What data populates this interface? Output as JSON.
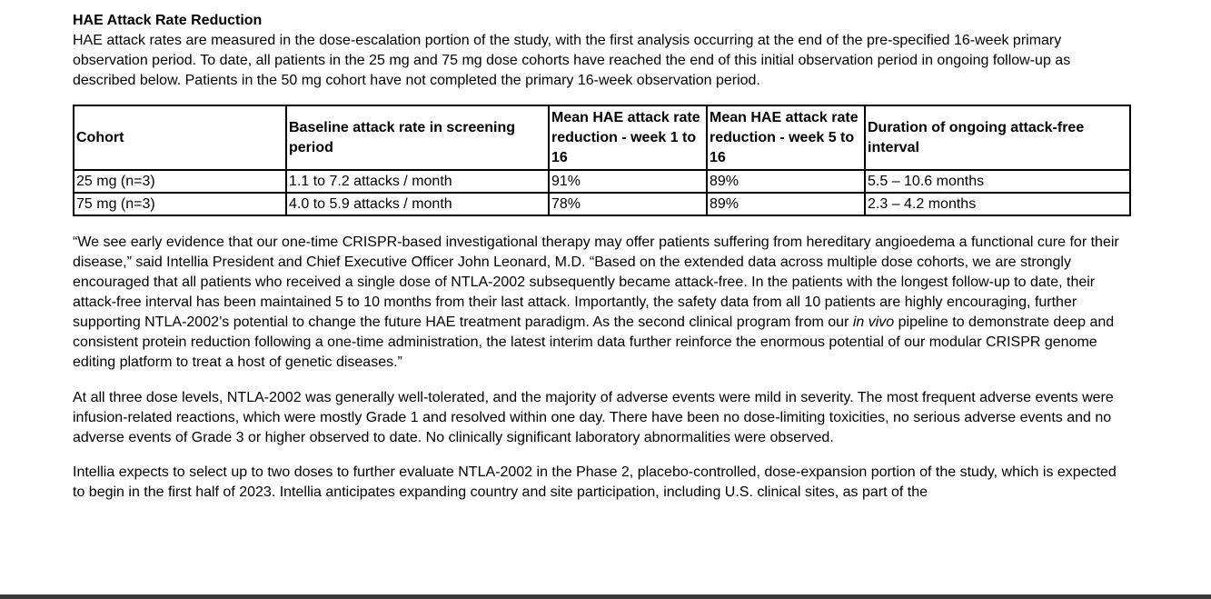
{
  "section_title": "HAE Attack Rate Reduction",
  "intro": "HAE attack rates are measured in the dose-escalation portion of the study, with the first analysis occurring at the end of the pre-specified 16-week primary observation period. To date, all patients in the 25 mg and 75 mg dose cohorts have reached the end of this initial observation period in ongoing follow-up as described below. Patients in the 50 mg cohort have not completed the primary 16-week observation period.",
  "table": {
    "headers": [
      "Cohort",
      "Baseline attack rate in screening period",
      "Mean HAE attack rate reduction - week 1 to 16",
      "Mean HAE attack rate reduction - week 5 to 16",
      "Duration of ongoing attack-free interval"
    ],
    "rows": [
      [
        "25 mg (n=3)",
        "1.1 to 7.2 attacks / month",
        "91%",
        "89%",
        "5.5 – 10.6 months"
      ],
      [
        "75 mg (n=3)",
        "4.0 to 5.9 attacks / month",
        "78%",
        "89%",
        "2.3 – 4.2 months"
      ]
    ]
  },
  "quote": {
    "part1": "“We see early evidence that our one-time CRISPR-based investigational therapy may offer patients suffering from hereditary angioedema a functional cure for their disease,” said Intellia President and Chief Executive Officer  John Leonard, M.D. “Based on the extended data across multiple dose cohorts, we are strongly encouraged that all patients who received a single dose of NTLA-2002 subsequently became attack-free. In the patients with the longest follow-up to date, their attack-free interval has been maintained 5 to 10 months from their last attack. Importantly, the safety data from all 10 patients are highly encouraging, further supporting NTLA-2002’s potential to change the future HAE treatment paradigm. As the second clinical program from our ",
    "italic": "in vivo",
    "part2": " pipeline to demonstrate deep and consistent protein reduction following a one-time administration, the latest interim data further reinforce the enormous potential of our modular CRISPR genome editing platform to treat a host of genetic diseases.”"
  },
  "safety": "At all three dose levels, NTLA-2002 was generally well-tolerated, and the majority of adverse events were mild in severity. The most frequent adverse events were infusion-related reactions, which were mostly Grade 1 and resolved within one day. There have been no dose-limiting toxicities, no serious adverse events and no adverse events of Grade 3 or higher observed to date. No clinically significant laboratory abnormalities were observed.",
  "outlook": "Intellia expects to select up to two doses to further evaluate NTLA-2002 in the Phase 2, placebo-controlled, dose-expansion portion of the study, which is expected to begin in the first half of 2023. Intellia anticipates expanding country and site participation, including U.S. clinical sites, as part of the"
}
